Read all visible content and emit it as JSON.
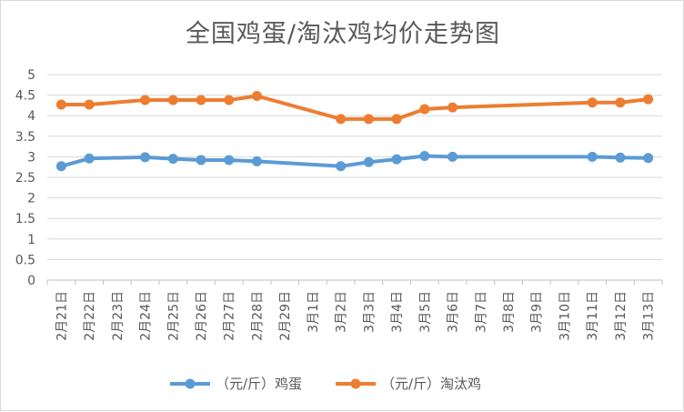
{
  "chart_data": {
    "type": "line",
    "title": "全国鸡蛋/淘汰鸡均价走势图",
    "categories": [
      "2月21日",
      "2月22日",
      "2月23日",
      "2月24日",
      "2月25日",
      "2月26日",
      "2月27日",
      "2月28日",
      "2月29日",
      "3月1日",
      "3月2日",
      "3月3日",
      "3月4日",
      "3月5日",
      "3月6日",
      "3月7日",
      "3月8日",
      "3月9日",
      "3月10日",
      "3月11日",
      "3月12日",
      "3月13日"
    ],
    "series": [
      {
        "name": "（元/斤）鸡蛋",
        "color": "#5B9BD5",
        "values": [
          2.77,
          2.96,
          null,
          2.99,
          2.95,
          2.92,
          2.92,
          2.89,
          null,
          null,
          2.77,
          2.87,
          2.94,
          3.02,
          3.0,
          null,
          null,
          null,
          null,
          3.0,
          2.98,
          2.97
        ]
      },
      {
        "name": "（元/斤）淘汰鸡",
        "color": "#ED7D31",
        "values": [
          4.27,
          4.27,
          null,
          4.38,
          4.38,
          4.38,
          4.38,
          4.48,
          null,
          null,
          3.92,
          3.92,
          3.92,
          4.16,
          4.2,
          null,
          null,
          null,
          null,
          4.32,
          4.32,
          4.4
        ]
      }
    ],
    "ylim": [
      0,
      5
    ],
    "yticks": [
      "0",
      "0.5",
      "1",
      "1.5",
      "2",
      "2.5",
      "3",
      "3.5",
      "4",
      "4.5",
      "5"
    ],
    "grid": true,
    "legend_position": "bottom"
  }
}
